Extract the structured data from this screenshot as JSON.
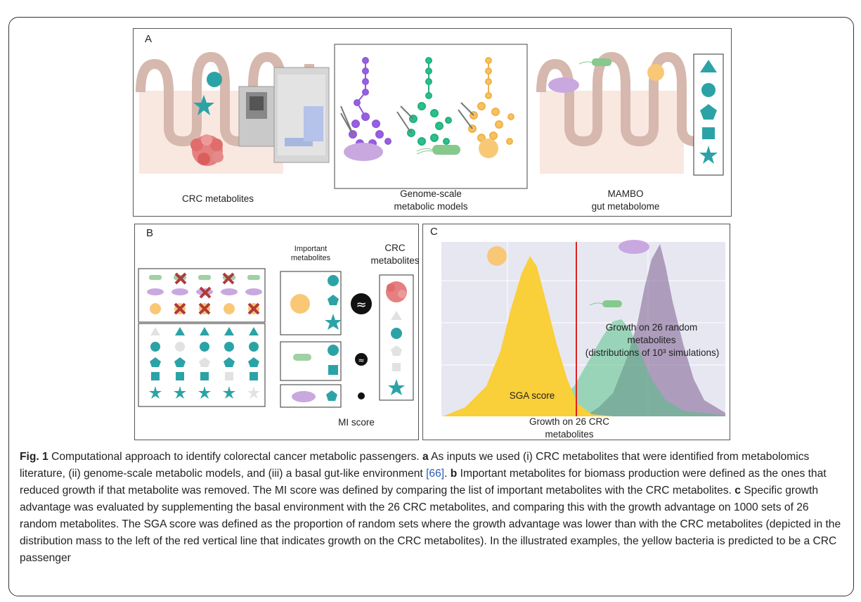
{
  "panel_a": {
    "label": "A",
    "crc_label": "CRC metabolites",
    "models_label_1": "Genome-scale",
    "models_label_2": "metabolic models",
    "mambo_label_1": "MAMBO",
    "mambo_label_2": "gut metabolome"
  },
  "panel_b": {
    "label": "B",
    "important_1": "Important",
    "important_2": "metabolites",
    "crc_1": "CRC",
    "crc_2": "metabolites",
    "mi_score": "MI score"
  },
  "panel_c": {
    "label": "C",
    "random_1": "Growth on 26 random",
    "random_2": "metabolites",
    "random_3": "(distributions of 10³ simulations)",
    "sga": "SGA score",
    "crc_growth_1": "Growth on 26 CRC",
    "crc_growth_2": "metabolites"
  },
  "caption": {
    "fig": "Fig. 1",
    "title": " Computational approach to identify colorectal cancer metabolic passengers. ",
    "a": "a",
    "a_text": " As inputs we used (i) CRC metabolites that were identified from metabolomics literature, (ii) genome-scale metabolic models, and (iii) a basal gut-like environment ",
    "cite": "[66]",
    "a_end": ". ",
    "b": "b",
    "b_text": " Important metabolites for biomass production were defined as the ones that reduced growth if that metabolite was removed. The MI score was defined by comparing the list of important metabolites with the CRC metabolites. ",
    "c": "c",
    "c_text": " Specific growth advantage was evaluated by supplementing the basal environment with the 26 CRC metabolites, and comparing this with the growth advantage on 1000 sets of 26 random metabolites. The SGA score was defined as the proportion of random sets where the growth advantage was lower than with the CRC metabolites (depicted in the distribution mass to the left of the red vertical line that indicates growth on the CRC metabolites). In the illustrated examples, the yellow bacteria is predicted to be a CRC passenger"
  },
  "colors": {
    "teal": "#2ba3a6",
    "purple": "#9b5de5",
    "green": "#2cc08a",
    "orange": "#f7c260",
    "yellow": "#f9cf3a",
    "red_line": "#e02020",
    "tumor": "#e07a7a"
  }
}
